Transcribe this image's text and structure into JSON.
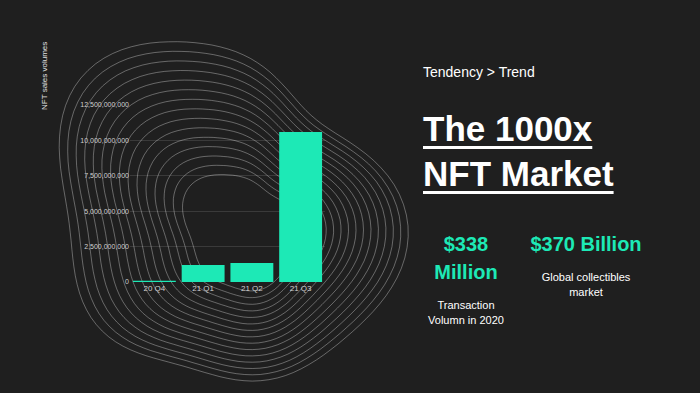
{
  "chart_data": {
    "type": "bar",
    "y_label": "NFT sales volumes",
    "categories": [
      "20 Q4",
      "21 Q1",
      "21 Q2",
      "21 Q3"
    ],
    "values": [
      80000000,
      1200000000,
      1340000000,
      10600000000
    ],
    "color": "#1de9b6",
    "ylim": [
      0,
      12500000000
    ],
    "yticks": [
      0,
      {
        "value": 2500000000,
        "label": "2,500,000,000"
      },
      {
        "value": 5000000000,
        "label": "5,000,000,000"
      },
      {
        "value": 7500000000,
        "label": "7,500,000,000"
      },
      {
        "value": 10000000000,
        "label": "10,000,000,000"
      },
      {
        "value": 12500000000,
        "label": "12,500,000,000"
      }
    ],
    "grid": true,
    "data_labels": false
  },
  "panel": {
    "kicker": "Tendency > Trend",
    "headline": "The 1000x NFT Market",
    "stats": [
      {
        "figure": "$338 Million",
        "caption": "Transaction Volumn in 2020"
      },
      {
        "figure": "$370 Billion",
        "caption": "Global collectibles market"
      }
    ]
  }
}
